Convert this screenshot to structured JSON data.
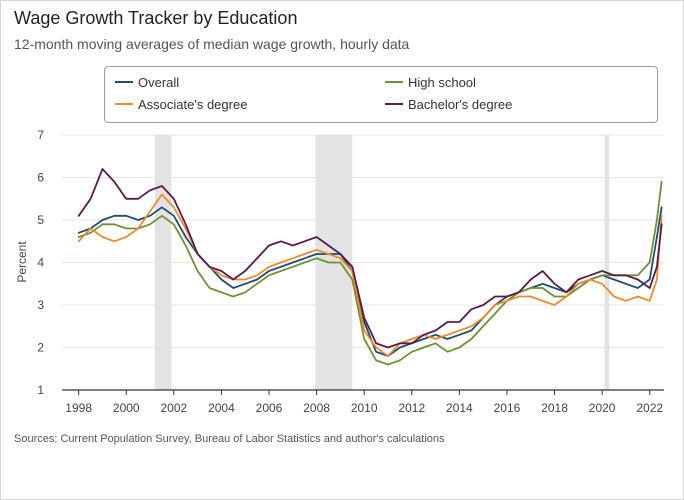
{
  "chart_data": {
    "type": "line",
    "title": "Wage Growth Tracker by Education",
    "subtitle": "12-month moving averages of median wage growth, hourly data",
    "xlabel": "",
    "ylabel": "Percent",
    "ylim": [
      1,
      7
    ],
    "xlim": [
      1997.3,
      2022.6
    ],
    "yticks": [
      1,
      2,
      3,
      4,
      5,
      6,
      7
    ],
    "xticks": [
      1998,
      2000,
      2002,
      2004,
      2006,
      2008,
      2010,
      2012,
      2014,
      2016,
      2018,
      2020,
      2022
    ],
    "grid": "horizontal",
    "legend_position": "top",
    "recession_bands": [
      [
        2001.2,
        2001.9
      ],
      [
        2007.95,
        2009.5
      ],
      [
        2020.1,
        2020.3
      ]
    ],
    "series": [
      {
        "name": "Overall",
        "color": "#1d4e6e",
        "x": [
          1998.0,
          1998.5,
          1999.0,
          1999.5,
          2000.0,
          2000.5,
          2001.0,
          2001.5,
          2002.0,
          2002.5,
          2003.0,
          2003.5,
          2004.0,
          2004.5,
          2005.0,
          2005.5,
          2006.0,
          2006.5,
          2007.0,
          2007.5,
          2008.0,
          2008.5,
          2009.0,
          2009.5,
          2010.0,
          2010.5,
          2011.0,
          2011.5,
          2012.0,
          2012.5,
          2013.0,
          2013.5,
          2014.0,
          2014.5,
          2015.0,
          2015.5,
          2016.0,
          2016.5,
          2017.0,
          2017.5,
          2018.0,
          2018.5,
          2019.0,
          2019.5,
          2020.0,
          2020.5,
          2021.0,
          2021.5,
          2022.0,
          2022.3,
          2022.5
        ],
        "y": [
          4.7,
          4.8,
          5.0,
          5.1,
          5.1,
          5.0,
          5.1,
          5.3,
          5.1,
          4.6,
          4.2,
          3.9,
          3.6,
          3.4,
          3.5,
          3.6,
          3.8,
          3.9,
          4.0,
          4.1,
          4.2,
          4.2,
          4.2,
          3.8,
          2.6,
          1.9,
          1.8,
          2.0,
          2.1,
          2.2,
          2.3,
          2.2,
          2.3,
          2.4,
          2.7,
          3.0,
          3.2,
          3.3,
          3.4,
          3.5,
          3.4,
          3.3,
          3.5,
          3.6,
          3.7,
          3.6,
          3.5,
          3.4,
          3.6,
          4.6,
          5.3
        ]
      },
      {
        "name": "High school",
        "color": "#6c9232",
        "x": [
          1998.0,
          1998.5,
          1999.0,
          1999.5,
          2000.0,
          2000.5,
          2001.0,
          2001.5,
          2002.0,
          2002.5,
          2003.0,
          2003.5,
          2004.0,
          2004.5,
          2005.0,
          2005.5,
          2006.0,
          2006.5,
          2007.0,
          2007.5,
          2008.0,
          2008.5,
          2009.0,
          2009.5,
          2010.0,
          2010.5,
          2011.0,
          2011.5,
          2012.0,
          2012.5,
          2013.0,
          2013.5,
          2014.0,
          2014.5,
          2015.0,
          2015.5,
          2016.0,
          2016.5,
          2017.0,
          2017.5,
          2018.0,
          2018.5,
          2019.0,
          2019.5,
          2020.0,
          2020.5,
          2021.0,
          2021.5,
          2022.0,
          2022.3,
          2022.5
        ],
        "y": [
          4.6,
          4.7,
          4.9,
          4.9,
          4.8,
          4.8,
          4.9,
          5.1,
          4.9,
          4.4,
          3.8,
          3.4,
          3.3,
          3.2,
          3.3,
          3.5,
          3.7,
          3.8,
          3.9,
          4.0,
          4.1,
          4.0,
          4.0,
          3.6,
          2.2,
          1.7,
          1.6,
          1.7,
          1.9,
          2.0,
          2.1,
          1.9,
          2.0,
          2.2,
          2.5,
          2.8,
          3.1,
          3.3,
          3.4,
          3.4,
          3.2,
          3.2,
          3.4,
          3.6,
          3.7,
          3.7,
          3.7,
          3.7,
          4.0,
          5.0,
          5.9
        ]
      },
      {
        "name": "Associate's degree",
        "color": "#f0892a",
        "x": [
          1998.0,
          1998.5,
          1999.0,
          1999.5,
          2000.0,
          2000.5,
          2001.0,
          2001.5,
          2002.0,
          2002.5,
          2003.0,
          2003.5,
          2004.0,
          2004.5,
          2005.0,
          2005.5,
          2006.0,
          2006.5,
          2007.0,
          2007.5,
          2008.0,
          2008.5,
          2009.0,
          2009.5,
          2010.0,
          2010.5,
          2011.0,
          2011.5,
          2012.0,
          2012.5,
          2013.0,
          2013.5,
          2014.0,
          2014.5,
          2015.0,
          2015.5,
          2016.0,
          2016.5,
          2017.0,
          2017.5,
          2018.0,
          2018.5,
          2019.0,
          2019.5,
          2020.0,
          2020.5,
          2021.0,
          2021.5,
          2022.0,
          2022.3,
          2022.5
        ],
        "y": [
          4.5,
          4.8,
          4.6,
          4.5,
          4.6,
          4.8,
          5.2,
          5.6,
          5.3,
          4.8,
          4.2,
          3.9,
          3.7,
          3.6,
          3.6,
          3.7,
          3.9,
          4.0,
          4.1,
          4.2,
          4.3,
          4.2,
          4.1,
          3.8,
          2.4,
          2.0,
          1.8,
          2.1,
          2.2,
          2.3,
          2.2,
          2.3,
          2.4,
          2.5,
          2.7,
          3.0,
          3.1,
          3.2,
          3.2,
          3.1,
          3.0,
          3.2,
          3.5,
          3.6,
          3.5,
          3.2,
          3.1,
          3.2,
          3.1,
          3.6,
          5.1
        ]
      },
      {
        "name": "Bachelor's degree",
        "color": "#5b1a4e",
        "x": [
          1998.0,
          1998.5,
          1999.0,
          1999.5,
          2000.0,
          2000.5,
          2001.0,
          2001.5,
          2002.0,
          2002.5,
          2003.0,
          2003.5,
          2004.0,
          2004.5,
          2005.0,
          2005.5,
          2006.0,
          2006.5,
          2007.0,
          2007.5,
          2008.0,
          2008.5,
          2009.0,
          2009.5,
          2010.0,
          2010.5,
          2011.0,
          2011.5,
          2012.0,
          2012.5,
          2013.0,
          2013.5,
          2014.0,
          2014.5,
          2015.0,
          2015.5,
          2016.0,
          2016.5,
          2017.0,
          2017.5,
          2018.0,
          2018.5,
          2019.0,
          2019.5,
          2020.0,
          2020.5,
          2021.0,
          2021.5,
          2022.0,
          2022.3,
          2022.5
        ],
        "y": [
          5.1,
          5.5,
          6.2,
          5.9,
          5.5,
          5.5,
          5.7,
          5.8,
          5.5,
          4.9,
          4.2,
          3.9,
          3.8,
          3.6,
          3.8,
          4.1,
          4.4,
          4.5,
          4.4,
          4.5,
          4.6,
          4.4,
          4.2,
          3.9,
          2.7,
          2.1,
          2.0,
          2.1,
          2.1,
          2.3,
          2.4,
          2.6,
          2.6,
          2.9,
          3.0,
          3.2,
          3.2,
          3.3,
          3.6,
          3.8,
          3.5,
          3.3,
          3.6,
          3.7,
          3.8,
          3.7,
          3.7,
          3.6,
          3.4,
          3.9,
          4.9
        ]
      }
    ]
  },
  "source": "Sources: Current Population Survey, Bureau of Labor Statistics and author's calculations"
}
